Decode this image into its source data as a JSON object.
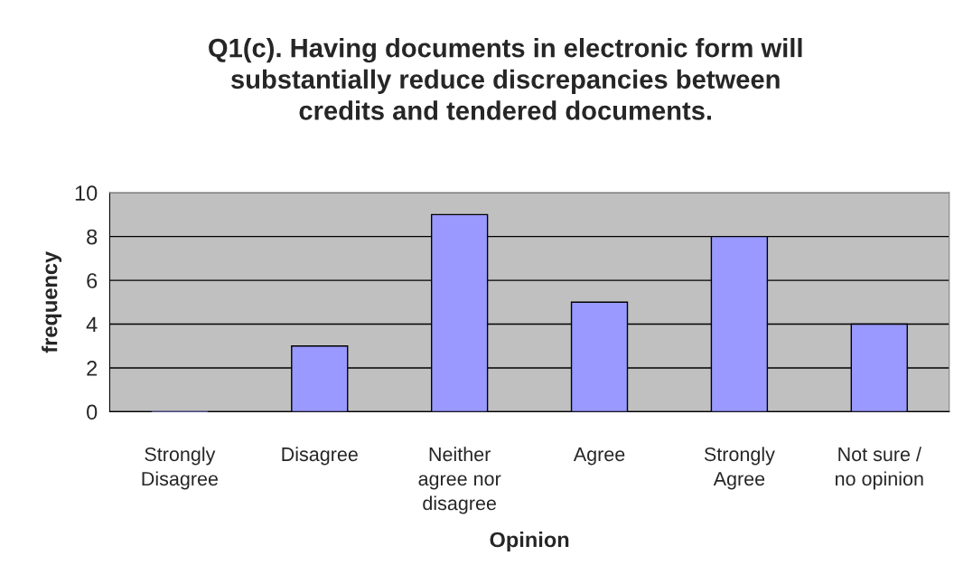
{
  "chart_data": {
    "type": "bar",
    "title": "Q1(c). Having documents in electronic form will\nsubstantially reduce discrepancies between\ncredits and tendered documents.",
    "xlabel": "Opinion",
    "ylabel": "frequency",
    "categories": [
      "Strongly\nDisagree",
      "Disagree",
      "Neither\nagree nor\ndisagree",
      "Agree",
      "Strongly\nAgree",
      "Not sure /\nno opinion"
    ],
    "values": [
      0,
      3,
      9,
      5,
      8,
      4
    ],
    "color": "#9999ff",
    "ylim": [
      0,
      10
    ],
    "yticks": [
      0,
      2,
      4,
      6,
      8,
      10
    ],
    "grid": "y"
  }
}
